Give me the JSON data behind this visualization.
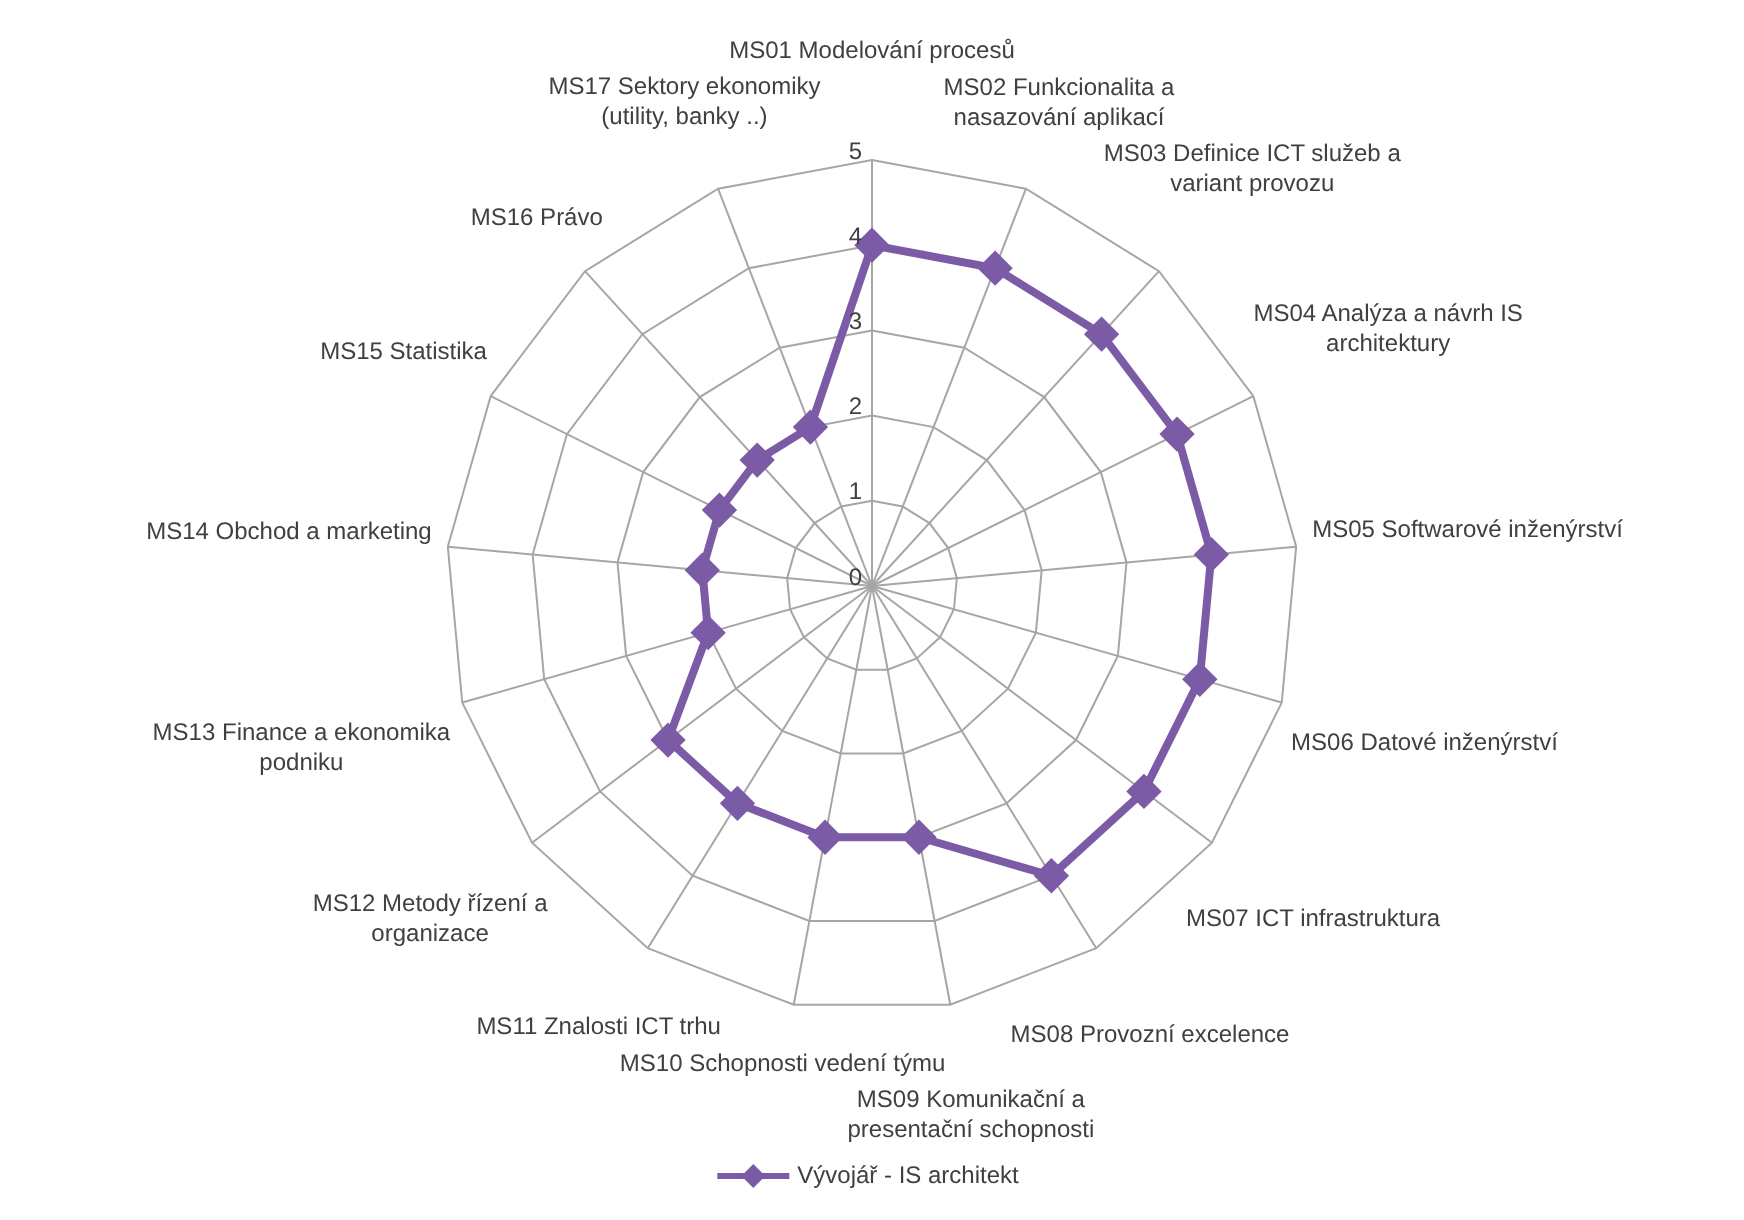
{
  "chart_data": {
    "type": "radar",
    "categories": [
      "MS01 Modelování procesů",
      "MS02 Funkcionalita a nasazování aplikací",
      "MS03 Definice ICT služeb a variant provozu",
      "MS04 Analýza a návrh IS architektury",
      "MS05 Softwarové inženýrství",
      "MS06 Datové inženýrství",
      "MS07 ICT infrastruktura",
      "MS08 Provozní excelence",
      "MS09 Komunikační a presentační schopnosti",
      "MS10 Schopnosti vedení týmu",
      "MS11 Znalosti ICT trhu",
      "MS12 Metody řízení a organizace",
      "MS13 Finance a ekonomika podniku",
      "MS14 Obchod a marketing",
      "MS15 Statistika",
      "MS16 Právo",
      "MS17 Sektory ekonomiky (utility, banky ..)"
    ],
    "series": [
      {
        "name": "Vývojář - IS architekt",
        "color": "#7b5aa6",
        "values": [
          4,
          4,
          4,
          4,
          4,
          4,
          4,
          4,
          3,
          3,
          3,
          3,
          2,
          2,
          2,
          2,
          2
        ]
      }
    ],
    "ylim": [
      0,
      5
    ],
    "yticks": [
      0,
      1,
      2,
      3,
      4,
      5
    ],
    "grid": true,
    "legend": "bottom",
    "marker": "diamond",
    "line_style": "solid"
  }
}
